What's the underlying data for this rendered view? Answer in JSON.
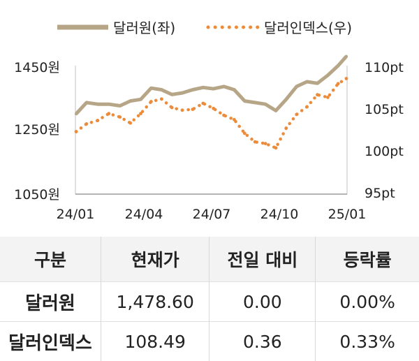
{
  "chart_data": {
    "type": "line",
    "x_ticks": [
      "24/01",
      "24/04",
      "24/07",
      "24/10",
      "25/01"
    ],
    "y_left_ticks": [
      "1450원",
      "1250원",
      "1050원"
    ],
    "y_right_ticks": [
      "110pt",
      "105pt",
      "100pt",
      "95pt"
    ],
    "y_left_range": [
      1050,
      1450
    ],
    "y_right_range": [
      95,
      110
    ],
    "x_range": [
      "2024-01",
      "2025-01"
    ],
    "legend_position": "top",
    "series": [
      {
        "name": "달러원(좌)",
        "axis": "left",
        "style": "solid",
        "color": "#b6a687",
        "x": [
          "2024-01-02",
          "2024-01-16",
          "2024-01-31",
          "2024-02-15",
          "2024-03-01",
          "2024-03-15",
          "2024-03-29",
          "2024-04-12",
          "2024-04-26",
          "2024-05-10",
          "2024-05-24",
          "2024-06-07",
          "2024-06-21",
          "2024-07-05",
          "2024-07-19",
          "2024-08-02",
          "2024-08-16",
          "2024-08-30",
          "2024-09-13",
          "2024-09-27",
          "2024-10-11",
          "2024-10-25",
          "2024-11-08",
          "2024-11-22",
          "2024-12-06",
          "2024-12-20",
          "2024-12-31"
        ],
        "values": [
          1300,
          1335,
          1330,
          1330,
          1325,
          1340,
          1345,
          1380,
          1375,
          1360,
          1365,
          1375,
          1382,
          1378,
          1385,
          1375,
          1340,
          1335,
          1330,
          1310,
          1345,
          1385,
          1400,
          1395,
          1420,
          1450,
          1478.6
        ]
      },
      {
        "name": "달러인덱스(우)",
        "axis": "right",
        "style": "dotted",
        "color": "#ec8c3b",
        "x": [
          "2024-01-02",
          "2024-01-16",
          "2024-01-31",
          "2024-02-15",
          "2024-03-01",
          "2024-03-15",
          "2024-03-29",
          "2024-04-12",
          "2024-04-26",
          "2024-05-10",
          "2024-05-24",
          "2024-06-07",
          "2024-06-21",
          "2024-07-05",
          "2024-07-19",
          "2024-08-02",
          "2024-08-16",
          "2024-08-30",
          "2024-09-13",
          "2024-09-27",
          "2024-10-11",
          "2024-10-25",
          "2024-11-08",
          "2024-11-22",
          "2024-12-06",
          "2024-12-20",
          "2024-12-31"
        ],
        "values": [
          102.3,
          103.2,
          103.6,
          104.4,
          104.0,
          103.3,
          104.4,
          105.8,
          106.1,
          105.1,
          104.8,
          104.9,
          105.6,
          105.0,
          104.2,
          103.7,
          102.1,
          101.1,
          100.9,
          100.4,
          102.7,
          104.3,
          105.2,
          106.6,
          106.3,
          107.9,
          108.49
        ]
      }
    ]
  },
  "table": {
    "headers": [
      "구분",
      "현재가",
      "전일 대비",
      "등락률"
    ],
    "rows": [
      [
        "달러원",
        "1,478.60",
        "0.00",
        "0.00%"
      ],
      [
        "달러인덱스",
        "108.49",
        "0.36",
        "0.33%"
      ]
    ]
  }
}
